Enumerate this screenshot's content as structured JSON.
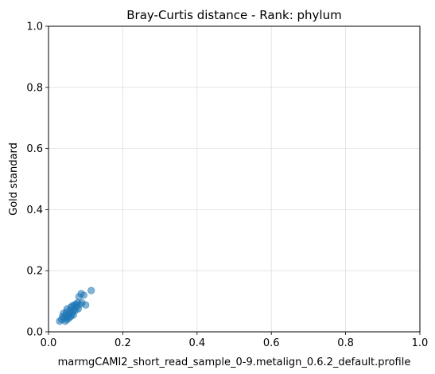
{
  "chart_data": {
    "type": "scatter",
    "title": "Bray-Curtis distance - Rank: phylum",
    "xlabel": "marmgCAMI2_short_read_sample_0-9.metalign_0.6.2_default.profile",
    "ylabel": "Gold standard",
    "xlim": [
      0,
      1
    ],
    "ylim": [
      0,
      1
    ],
    "xticks": [
      "0.0",
      "0.2",
      "0.4",
      "0.6",
      "0.8",
      "1.0"
    ],
    "yticks": [
      "0.0",
      "0.2",
      "0.4",
      "0.6",
      "0.8",
      "1.0"
    ],
    "grid": true,
    "legend": "none",
    "marker_color": "#1f77b4",
    "points": [
      {
        "x": 0.03,
        "y": 0.035
      },
      {
        "x": 0.035,
        "y": 0.04
      },
      {
        "x": 0.038,
        "y": 0.05
      },
      {
        "x": 0.04,
        "y": 0.06
      },
      {
        "x": 0.042,
        "y": 0.045
      },
      {
        "x": 0.045,
        "y": 0.035
      },
      {
        "x": 0.046,
        "y": 0.055
      },
      {
        "x": 0.048,
        "y": 0.065
      },
      {
        "x": 0.05,
        "y": 0.04
      },
      {
        "x": 0.05,
        "y": 0.075
      },
      {
        "x": 0.052,
        "y": 0.05
      },
      {
        "x": 0.055,
        "y": 0.045
      },
      {
        "x": 0.056,
        "y": 0.06
      },
      {
        "x": 0.058,
        "y": 0.07
      },
      {
        "x": 0.06,
        "y": 0.05
      },
      {
        "x": 0.06,
        "y": 0.08
      },
      {
        "x": 0.062,
        "y": 0.058
      },
      {
        "x": 0.064,
        "y": 0.085
      },
      {
        "x": 0.065,
        "y": 0.065
      },
      {
        "x": 0.067,
        "y": 0.055
      },
      {
        "x": 0.068,
        "y": 0.075
      },
      {
        "x": 0.07,
        "y": 0.088
      },
      {
        "x": 0.072,
        "y": 0.07
      },
      {
        "x": 0.074,
        "y": 0.09
      },
      {
        "x": 0.076,
        "y": 0.08
      },
      {
        "x": 0.078,
        "y": 0.095
      },
      {
        "x": 0.08,
        "y": 0.075
      },
      {
        "x": 0.082,
        "y": 0.115
      },
      {
        "x": 0.085,
        "y": 0.09
      },
      {
        "x": 0.088,
        "y": 0.125
      },
      {
        "x": 0.09,
        "y": 0.095
      },
      {
        "x": 0.095,
        "y": 0.12
      },
      {
        "x": 0.1,
        "y": 0.088
      },
      {
        "x": 0.115,
        "y": 0.135
      }
    ]
  }
}
